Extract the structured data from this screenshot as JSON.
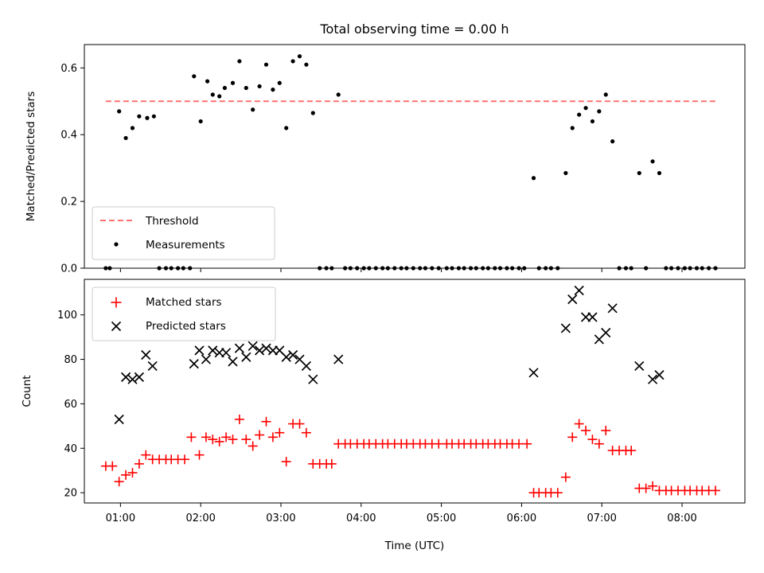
{
  "figure": {
    "title": "Total observing time = 0.00 h"
  },
  "x_axis": {
    "label": "Time (UTC)",
    "domain": [
      "00:33",
      "08:47"
    ],
    "ticks": [
      "01:00",
      "02:00",
      "03:00",
      "04:00",
      "05:00",
      "06:00",
      "07:00",
      "08:00"
    ]
  },
  "colors": {
    "threshold": "#ff7070",
    "measurements": "#000000",
    "matched": "#ff0000",
    "predicted": "#000000"
  },
  "chart_data": [
    {
      "type": "scatter",
      "ylabel": "Matched/Predicted stars",
      "ylim": [
        0,
        0.67
      ],
      "yticks": [
        0.0,
        0.2,
        0.4,
        0.6
      ],
      "grid": false,
      "legend_position": "lower-left",
      "threshold": {
        "name": "Threshold",
        "y": 0.5,
        "x_range": [
          "00:49",
          "08:25"
        ]
      },
      "series": [
        {
          "name": "Measurements",
          "marker": "dot",
          "points": [
            [
              "00:49",
              0
            ],
            [
              "00:52",
              0
            ],
            [
              "00:59",
              0.47
            ],
            [
              "01:04",
              0.39
            ],
            [
              "01:09",
              0.42
            ],
            [
              "01:14",
              0.455
            ],
            [
              "01:20",
              0.45
            ],
            [
              "01:25",
              0.455
            ],
            [
              "01:29",
              0
            ],
            [
              "01:34",
              0
            ],
            [
              "01:38",
              0
            ],
            [
              "01:43",
              0
            ],
            [
              "01:47",
              0
            ],
            [
              "01:52",
              0
            ],
            [
              "01:55",
              0.575
            ],
            [
              "02:00",
              0.44
            ],
            [
              "02:05",
              0.56
            ],
            [
              "02:09",
              0.52
            ],
            [
              "02:14",
              0.515
            ],
            [
              "02:18",
              0.54
            ],
            [
              "02:24",
              0.555
            ],
            [
              "02:29",
              0.62
            ],
            [
              "02:34",
              0.54
            ],
            [
              "02:39",
              0.475
            ],
            [
              "02:44",
              0.545
            ],
            [
              "02:49",
              0.61
            ],
            [
              "02:54",
              0.535
            ],
            [
              "02:59",
              0.555
            ],
            [
              "03:04",
              0.42
            ],
            [
              "03:09",
              0.62
            ],
            [
              "03:14",
              0.635
            ],
            [
              "03:19",
              0.61
            ],
            [
              "03:24",
              0.465
            ],
            [
              "03:29",
              0
            ],
            [
              "03:34",
              0
            ],
            [
              "03:38",
              0
            ],
            [
              "03:43",
              0.52
            ],
            [
              "03:48",
              0
            ],
            [
              "03:52",
              0
            ],
            [
              "03:57",
              0
            ],
            [
              "04:02",
              0
            ],
            [
              "04:06",
              0
            ],
            [
              "04:11",
              0
            ],
            [
              "04:16",
              0
            ],
            [
              "04:20",
              0
            ],
            [
              "04:25",
              0
            ],
            [
              "04:30",
              0
            ],
            [
              "04:34",
              0
            ],
            [
              "04:39",
              0
            ],
            [
              "04:44",
              0
            ],
            [
              "04:48",
              0
            ],
            [
              "04:53",
              0
            ],
            [
              "04:58",
              0
            ],
            [
              "05:04",
              0
            ],
            [
              "05:08",
              0
            ],
            [
              "05:13",
              0
            ],
            [
              "05:17",
              0
            ],
            [
              "05:22",
              0
            ],
            [
              "05:26",
              0
            ],
            [
              "05:31",
              0
            ],
            [
              "05:35",
              0
            ],
            [
              "05:40",
              0
            ],
            [
              "05:44",
              0
            ],
            [
              "05:49",
              0
            ],
            [
              "05:53",
              0
            ],
            [
              "05:58",
              0
            ],
            [
              "06:02",
              0
            ],
            [
              "06:09",
              0.27
            ],
            [
              "06:13",
              0
            ],
            [
              "06:18",
              0
            ],
            [
              "06:22",
              0
            ],
            [
              "06:27",
              0
            ],
            [
              "06:33",
              0.285
            ],
            [
              "06:38",
              0.42
            ],
            [
              "06:43",
              0.46
            ],
            [
              "06:48",
              0.48
            ],
            [
              "06:53",
              0.44
            ],
            [
              "06:58",
              0.47
            ],
            [
              "07:03",
              0.52
            ],
            [
              "07:08",
              0.38
            ],
            [
              "07:13",
              0
            ],
            [
              "07:18",
              0
            ],
            [
              "07:22",
              0
            ],
            [
              "07:28",
              0.285
            ],
            [
              "07:33",
              0
            ],
            [
              "07:38",
              0.32
            ],
            [
              "07:43",
              0.285
            ],
            [
              "07:48",
              0
            ],
            [
              "07:52",
              0
            ],
            [
              "07:57",
              0
            ],
            [
              "08:02",
              0
            ],
            [
              "08:06",
              0
            ],
            [
              "08:11",
              0
            ],
            [
              "08:15",
              0
            ],
            [
              "08:20",
              0
            ],
            [
              "08:25",
              0
            ]
          ]
        }
      ]
    },
    {
      "type": "scatter",
      "ylabel": "Count",
      "ylim": [
        15.4,
        116
      ],
      "yticks": [
        20,
        40,
        60,
        80,
        100
      ],
      "grid": false,
      "legend_position": "top-left",
      "series": [
        {
          "name": "Matched stars",
          "marker": "plus",
          "points": [
            [
              "00:49",
              32
            ],
            [
              "00:54",
              32
            ],
            [
              "00:59",
              25
            ],
            [
              "01:04",
              28
            ],
            [
              "01:09",
              29
            ],
            [
              "01:14",
              33
            ],
            [
              "01:19",
              37
            ],
            [
              "01:24",
              35
            ],
            [
              "01:29",
              35
            ],
            [
              "01:34",
              35
            ],
            [
              "01:38",
              35
            ],
            [
              "01:43",
              35
            ],
            [
              "01:48",
              35
            ],
            [
              "01:53",
              45
            ],
            [
              "01:59",
              37
            ],
            [
              "02:04",
              45
            ],
            [
              "02:09",
              44
            ],
            [
              "02:14",
              43
            ],
            [
              "02:19",
              45
            ],
            [
              "02:24",
              44
            ],
            [
              "02:29",
              53
            ],
            [
              "02:34",
              44
            ],
            [
              "02:39",
              41
            ],
            [
              "02:44",
              46
            ],
            [
              "02:49",
              52
            ],
            [
              "02:54",
              45
            ],
            [
              "02:59",
              47
            ],
            [
              "03:04",
              34
            ],
            [
              "03:09",
              51
            ],
            [
              "03:14",
              51
            ],
            [
              "03:19",
              47
            ],
            [
              "03:24",
              33
            ],
            [
              "03:29",
              33
            ],
            [
              "03:34",
              33
            ],
            [
              "03:38",
              33
            ],
            [
              "03:43",
              42
            ],
            [
              "03:48",
              42
            ],
            [
              "03:52",
              42
            ],
            [
              "03:57",
              42
            ],
            [
              "04:02",
              42
            ],
            [
              "04:06",
              42
            ],
            [
              "04:11",
              42
            ],
            [
              "04:16",
              42
            ],
            [
              "04:20",
              42
            ],
            [
              "04:25",
              42
            ],
            [
              "04:30",
              42
            ],
            [
              "04:34",
              42
            ],
            [
              "04:39",
              42
            ],
            [
              "04:44",
              42
            ],
            [
              "04:48",
              42
            ],
            [
              "04:53",
              42
            ],
            [
              "04:58",
              42
            ],
            [
              "05:04",
              42
            ],
            [
              "05:08",
              42
            ],
            [
              "05:13",
              42
            ],
            [
              "05:17",
              42
            ],
            [
              "05:22",
              42
            ],
            [
              "05:26",
              42
            ],
            [
              "05:31",
              42
            ],
            [
              "05:35",
              42
            ],
            [
              "05:40",
              42
            ],
            [
              "05:44",
              42
            ],
            [
              "05:49",
              42
            ],
            [
              "05:53",
              42
            ],
            [
              "05:58",
              42
            ],
            [
              "06:04",
              42
            ],
            [
              "06:09",
              20
            ],
            [
              "06:13",
              20
            ],
            [
              "06:18",
              20
            ],
            [
              "06:22",
              20
            ],
            [
              "06:27",
              20
            ],
            [
              "06:33",
              27
            ],
            [
              "06:38",
              45
            ],
            [
              "06:43",
              51
            ],
            [
              "06:48",
              48
            ],
            [
              "06:53",
              44
            ],
            [
              "06:58",
              42
            ],
            [
              "07:03",
              48
            ],
            [
              "07:08",
              39
            ],
            [
              "07:13",
              39
            ],
            [
              "07:18",
              39
            ],
            [
              "07:22",
              39
            ],
            [
              "07:28",
              22
            ],
            [
              "07:33",
              22
            ],
            [
              "07:38",
              23
            ],
            [
              "07:43",
              21
            ],
            [
              "07:48",
              21
            ],
            [
              "07:52",
              21
            ],
            [
              "07:57",
              21
            ],
            [
              "08:02",
              21
            ],
            [
              "08:06",
              21
            ],
            [
              "08:11",
              21
            ],
            [
              "08:15",
              21
            ],
            [
              "08:20",
              21
            ],
            [
              "08:25",
              21
            ]
          ]
        },
        {
          "name": "Predicted stars",
          "marker": "x",
          "points": [
            [
              "00:59",
              53
            ],
            [
              "01:04",
              72
            ],
            [
              "01:09",
              71
            ],
            [
              "01:14",
              72
            ],
            [
              "01:19",
              82
            ],
            [
              "01:24",
              77
            ],
            [
              "01:55",
              78
            ],
            [
              "01:59",
              84
            ],
            [
              "02:04",
              80
            ],
            [
              "02:09",
              84
            ],
            [
              "02:14",
              83
            ],
            [
              "02:19",
              83
            ],
            [
              "02:24",
              79
            ],
            [
              "02:29",
              85
            ],
            [
              "02:34",
              81
            ],
            [
              "02:39",
              86
            ],
            [
              "02:44",
              84
            ],
            [
              "02:49",
              85
            ],
            [
              "02:54",
              84
            ],
            [
              "02:59",
              84
            ],
            [
              "03:04",
              81
            ],
            [
              "03:09",
              82
            ],
            [
              "03:14",
              80
            ],
            [
              "03:19",
              77
            ],
            [
              "03:24",
              71
            ],
            [
              "03:43",
              80
            ],
            [
              "06:09",
              74
            ],
            [
              "06:33",
              94
            ],
            [
              "06:38",
              107
            ],
            [
              "06:43",
              111
            ],
            [
              "06:48",
              99
            ],
            [
              "06:53",
              99
            ],
            [
              "06:58",
              89
            ],
            [
              "07:03",
              92
            ],
            [
              "07:08",
              103
            ],
            [
              "07:28",
              77
            ],
            [
              "07:38",
              71
            ],
            [
              "07:43",
              73
            ]
          ]
        }
      ]
    }
  ]
}
